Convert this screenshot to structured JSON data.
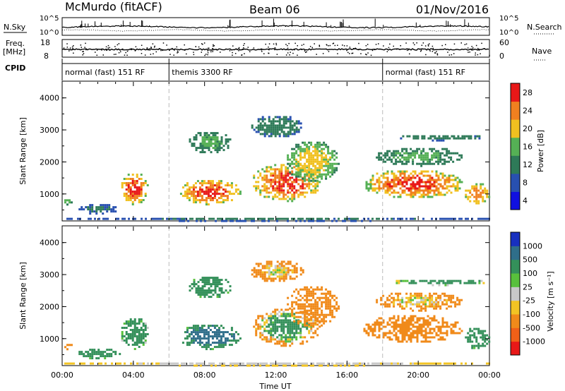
{
  "header": {
    "station": "McMurdo (fitACF)",
    "beam": "Beam 06",
    "date": "01/Nov/2016"
  },
  "summary": {
    "nsky_label": "N.Sky",
    "nsearch_label": "N.Search",
    "nsky_ticks": [
      "10^5",
      "10^0"
    ],
    "nsearch_ticks": [
      "10^5",
      "10^0"
    ],
    "freq_label": "Freq.",
    "freq_unit": "[MHz]",
    "freq_ticks": [
      "18",
      "8"
    ],
    "nave_label": "Nave",
    "nave_ticks": [
      "60",
      "0"
    ],
    "cpid_label": "CPID",
    "cpid_segments": [
      {
        "label": "normal (fast) 151 RF",
        "start_hr": 0,
        "end_hr": 6
      },
      {
        "label": "themis 3300 RF",
        "start_hr": 6,
        "end_hr": 18
      },
      {
        "label": "normal (fast) 151 RF",
        "start_hr": 18,
        "end_hr": 24
      }
    ]
  },
  "xaxis": {
    "label": "Time UT",
    "ticks": [
      "00:00",
      "04:00",
      "08:00",
      "12:00",
      "16:00",
      "20:00",
      "00:00"
    ],
    "range_hr": [
      0,
      24
    ]
  },
  "power_panel": {
    "ylabel": "Slant Range [km]",
    "yticks": [
      "1000",
      "2000",
      "3000",
      "4000"
    ],
    "ylim_km": [
      180,
      4500
    ],
    "cbar_label": "Power [dB]",
    "cbar_ticks": [
      "4",
      "8",
      "12",
      "16",
      "20",
      "24",
      "28"
    ],
    "cbar_colors": [
      "#1010e0",
      "#2850b0",
      "#2e7a58",
      "#55b055",
      "#f0c020",
      "#f08020",
      "#e81818"
    ]
  },
  "velocity_panel": {
    "ylabel": "Slant Range [km]",
    "yticks": [
      "1000",
      "2000",
      "3000",
      "4000"
    ],
    "ylim_km": [
      180,
      4500
    ],
    "cbar_label": "Velocity [m s⁻¹]",
    "cbar_ticks": [
      "1000",
      "500",
      "100",
      "25",
      "-25",
      "-100",
      "-500",
      "-1000"
    ],
    "cbar_colors": [
      "#1830c0",
      "#2f6e8a",
      "#34905a",
      "#58c03c",
      "#c8c8c8",
      "#f2c424",
      "#f08a1a",
      "#f06018",
      "#e81818"
    ]
  },
  "chart_data": {
    "type": "heatmap",
    "x_unit": "hours UT",
    "y_unit": "slant range km",
    "power_regions": [
      {
        "x": [
          0.0,
          0.5
        ],
        "y": [
          700,
          900
        ],
        "level": [
          8,
          16
        ]
      },
      {
        "x": [
          0.8,
          3.2
        ],
        "y": [
          400,
          750
        ],
        "level": [
          4,
          10
        ]
      },
      {
        "x": [
          3.2,
          4.8
        ],
        "y": [
          700,
          1700
        ],
        "level": [
          12,
          28
        ]
      },
      {
        "x": [
          6.5,
          10.0
        ],
        "y": [
          700,
          1500
        ],
        "level": [
          12,
          28
        ]
      },
      {
        "x": [
          7.0,
          9.5
        ],
        "y": [
          2300,
          3000
        ],
        "level": [
          8,
          14
        ]
      },
      {
        "x": [
          10.6,
          14.5
        ],
        "y": [
          800,
          2000
        ],
        "level": [
          12,
          28
        ]
      },
      {
        "x": [
          12.5,
          15.5
        ],
        "y": [
          1400,
          2700
        ],
        "level": [
          10,
          20
        ]
      },
      {
        "x": [
          10.5,
          13.5
        ],
        "y": [
          2800,
          3500
        ],
        "level": [
          6,
          12
        ]
      },
      {
        "x": [
          16.8,
          22.5
        ],
        "y": [
          900,
          1800
        ],
        "level": [
          12,
          28
        ]
      },
      {
        "x": [
          17.5,
          22.5
        ],
        "y": [
          1900,
          2500
        ],
        "level": [
          8,
          14
        ]
      },
      {
        "x": [
          18.5,
          24.0
        ],
        "y": [
          2700,
          2900
        ],
        "level": [
          6,
          12
        ]
      },
      {
        "x": [
          22.5,
          24.0
        ],
        "y": [
          700,
          1400
        ],
        "level": [
          12,
          24
        ]
      },
      {
        "x": [
          0.0,
          24.0
        ],
        "y": [
          180,
          320
        ],
        "level": [
          4,
          10
        ]
      }
    ],
    "velocity_regions": [
      {
        "x": [
          0.0,
          0.5
        ],
        "y": [
          700,
          900
        ],
        "level": [
          -500,
          -100
        ]
      },
      {
        "x": [
          0.8,
          3.2
        ],
        "y": [
          400,
          750
        ],
        "level": [
          25,
          500
        ]
      },
      {
        "x": [
          3.2,
          4.8
        ],
        "y": [
          700,
          1700
        ],
        "level": [
          -25,
          500
        ]
      },
      {
        "x": [
          6.5,
          10.0
        ],
        "y": [
          700,
          1500
        ],
        "level": [
          25,
          1000
        ]
      },
      {
        "x": [
          7.0,
          9.5
        ],
        "y": [
          2300,
          3000
        ],
        "level": [
          25,
          500
        ]
      },
      {
        "x": [
          10.6,
          14.5
        ],
        "y": [
          800,
          2000
        ],
        "level": [
          -500,
          500
        ]
      },
      {
        "x": [
          12.5,
          15.5
        ],
        "y": [
          1400,
          2700
        ],
        "level": [
          -500,
          -100
        ]
      },
      {
        "x": [
          10.5,
          13.5
        ],
        "y": [
          2800,
          3500
        ],
        "level": [
          -500,
          100
        ]
      },
      {
        "x": [
          16.8,
          22.5
        ],
        "y": [
          900,
          1800
        ],
        "level": [
          -500,
          -100
        ]
      },
      {
        "x": [
          17.5,
          22.5
        ],
        "y": [
          1900,
          2500
        ],
        "level": [
          -500,
          100
        ]
      },
      {
        "x": [
          18.5,
          24.0
        ],
        "y": [
          2700,
          2900
        ],
        "level": [
          -100,
          500
        ]
      },
      {
        "x": [
          22.5,
          24.0
        ],
        "y": [
          700,
          1400
        ],
        "level": [
          25,
          500
        ]
      },
      {
        "x": [
          0.0,
          24.0
        ],
        "y": [
          180,
          320
        ],
        "level": [
          -100,
          25
        ]
      }
    ]
  }
}
